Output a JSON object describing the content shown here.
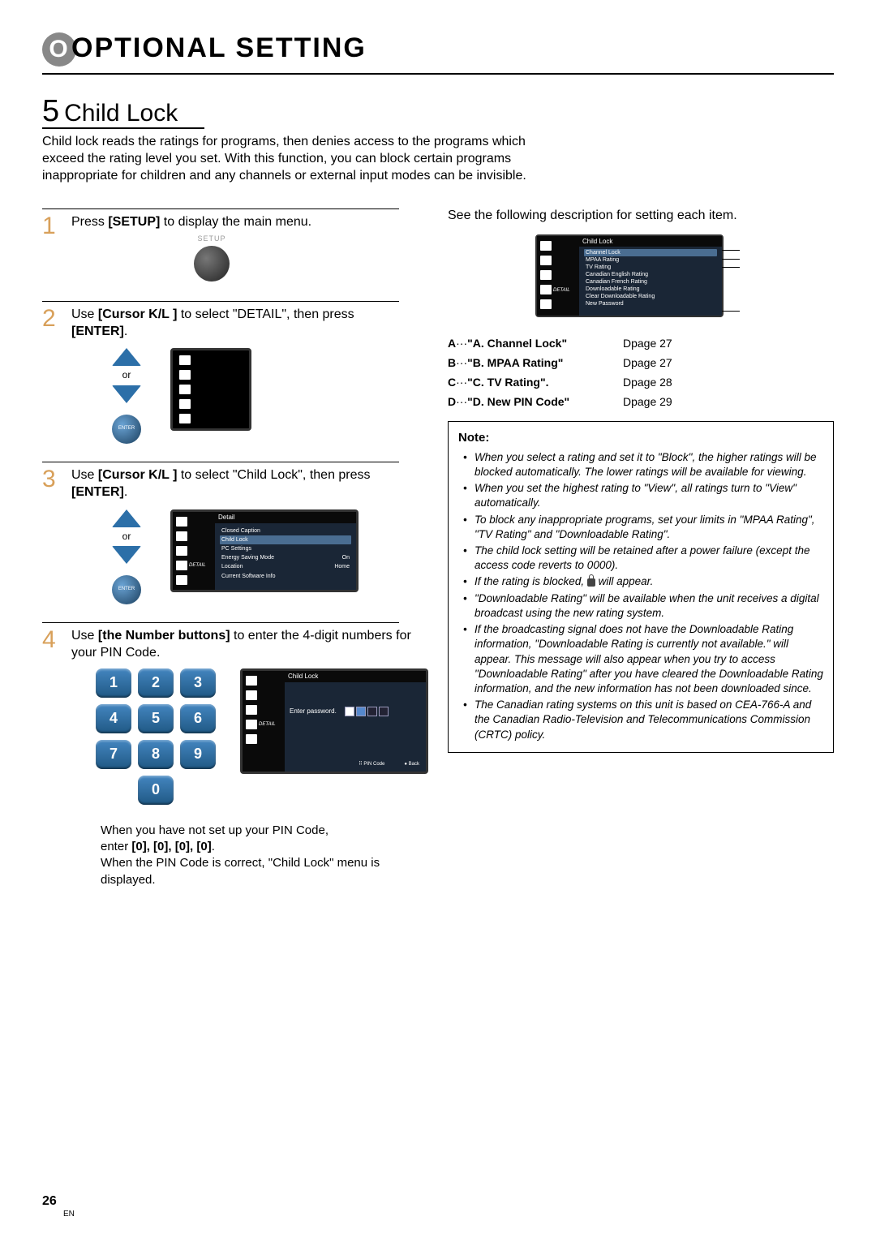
{
  "header": "OPTIONAL SETTING",
  "section": {
    "num": "5",
    "title": "Child Lock"
  },
  "intro": "Child lock reads the ratings for programs, then denies access to the programs which exceed the rating level you set. With this function, you can block certain programs inappropriate for children and any channels or external input modes can be invisible.",
  "steps": {
    "s1": {
      "n": "1",
      "pre": "Press ",
      "btn": "[SETUP]",
      "post": " to display the main menu.",
      "setupLabel": "SETUP"
    },
    "s2": {
      "n": "2",
      "pre": "Use ",
      "btn": "[Cursor K/L ]",
      "mid": " to select \"DETAIL\", then press ",
      "btn2": "[ENTER]",
      "post": ".",
      "or": "or",
      "enter": "ENTER"
    },
    "s3": {
      "n": "3",
      "pre": "Use ",
      "btn": "[Cursor K/L ]",
      "mid": " to select \"Child Lock\", then press ",
      "btn2": "[ENTER]",
      "post": ".",
      "or": "or",
      "enter": "ENTER"
    },
    "s4": {
      "n": "4",
      "pre": "Use ",
      "btn": "[the Number buttons]",
      "post": " to enter the 4-digit numbers for your PIN Code."
    }
  },
  "keys": [
    "1",
    "2",
    "3",
    "4",
    "5",
    "6",
    "7",
    "8",
    "9",
    "0"
  ],
  "detailMenu": {
    "title": "Detail",
    "rows": [
      {
        "l": "Closed Caption",
        "r": ""
      },
      {
        "l": "Child Lock",
        "r": "",
        "hl": true
      },
      {
        "l": "PC Settings",
        "r": ""
      },
      {
        "l": "Energy Saving Mode",
        "r": "On"
      },
      {
        "l": "Location",
        "r": "Home"
      },
      {
        "l": "Current Software Info",
        "r": ""
      }
    ],
    "detail": "DETAIL"
  },
  "childLockMenu": {
    "title": "Child Lock",
    "prompt": "Enter password.",
    "footer1": "PIN Code",
    "footer2": "Back",
    "detail": "DETAIL"
  },
  "pinPost": {
    "l1": "When you have not set up your PIN Code,",
    "l2p": "enter ",
    "zeros": "[0], [0], [0], [0]",
    "l2s": ".",
    "l3": "When the PIN Code is correct, \"Child Lock\" menu is displayed."
  },
  "rightTop": "See the following description for setting each item.",
  "childLockList": {
    "title": "Child Lock",
    "items": [
      "Channel Lock",
      "MPAA Rating",
      "TV Rating",
      "Canadian English Rating",
      "Canadian French Rating",
      "Downloadable Rating",
      "Clear Downloadable Rating",
      "New Password"
    ],
    "detail": "DETAIL"
  },
  "letters": {
    "a": "A",
    "b": "B",
    "c": "C",
    "d": "D"
  },
  "refs": [
    {
      "k": "A",
      "t": "\"A. Channel Lock\"",
      "p": "page 27"
    },
    {
      "k": "B",
      "t": "\"B. MPAA Rating\"",
      "p": "page 27"
    },
    {
      "k": "C",
      "t": "\"C. TV Rating\".",
      "p": "page 28"
    },
    {
      "k": "D",
      "t": "\"D. New PIN Code\"",
      "p": "page 29"
    }
  ],
  "refSymbol": "D",
  "note": {
    "title": "Note:",
    "items": [
      "When you select a rating and set it to \"Block\", the higher ratings will be blocked automatically. The lower ratings will be available for viewing.",
      "When you set the highest rating to \"View\", all ratings turn to \"View\" automatically.",
      "To block any inappropriate programs, set your limits in \"MPAA Rating\", \"TV Rating\" and \"Downloadable  Rating\".",
      "The child lock setting will be retained after a power failure (except the access code reverts to 0000).",
      "If the rating is blocked,    will appear.",
      "\"Downloadable  Rating\" will be available when the unit receives a digital broadcast using the new rating system.",
      "If the broadcasting signal does not have the Downloadable  Rating information, \"Downloadable Rating is currently not available.\" will appear.\nThis message will also appear when you try to access \"Downloadable  Rating\" after you have cleared the Downloadable  Rating information, and the new information has not been downloaded since.",
      "The Canadian rating systems on this unit is based on CEA-766-A and the Canadian Radio-Television and Telecommunications Commission (CRTC) policy."
    ]
  },
  "pageNum": "26",
  "pageLang": "EN",
  "colors": {
    "stepNum": "#d8a05a",
    "arrow": "#2c6fa8",
    "key": "#3576b0"
  }
}
